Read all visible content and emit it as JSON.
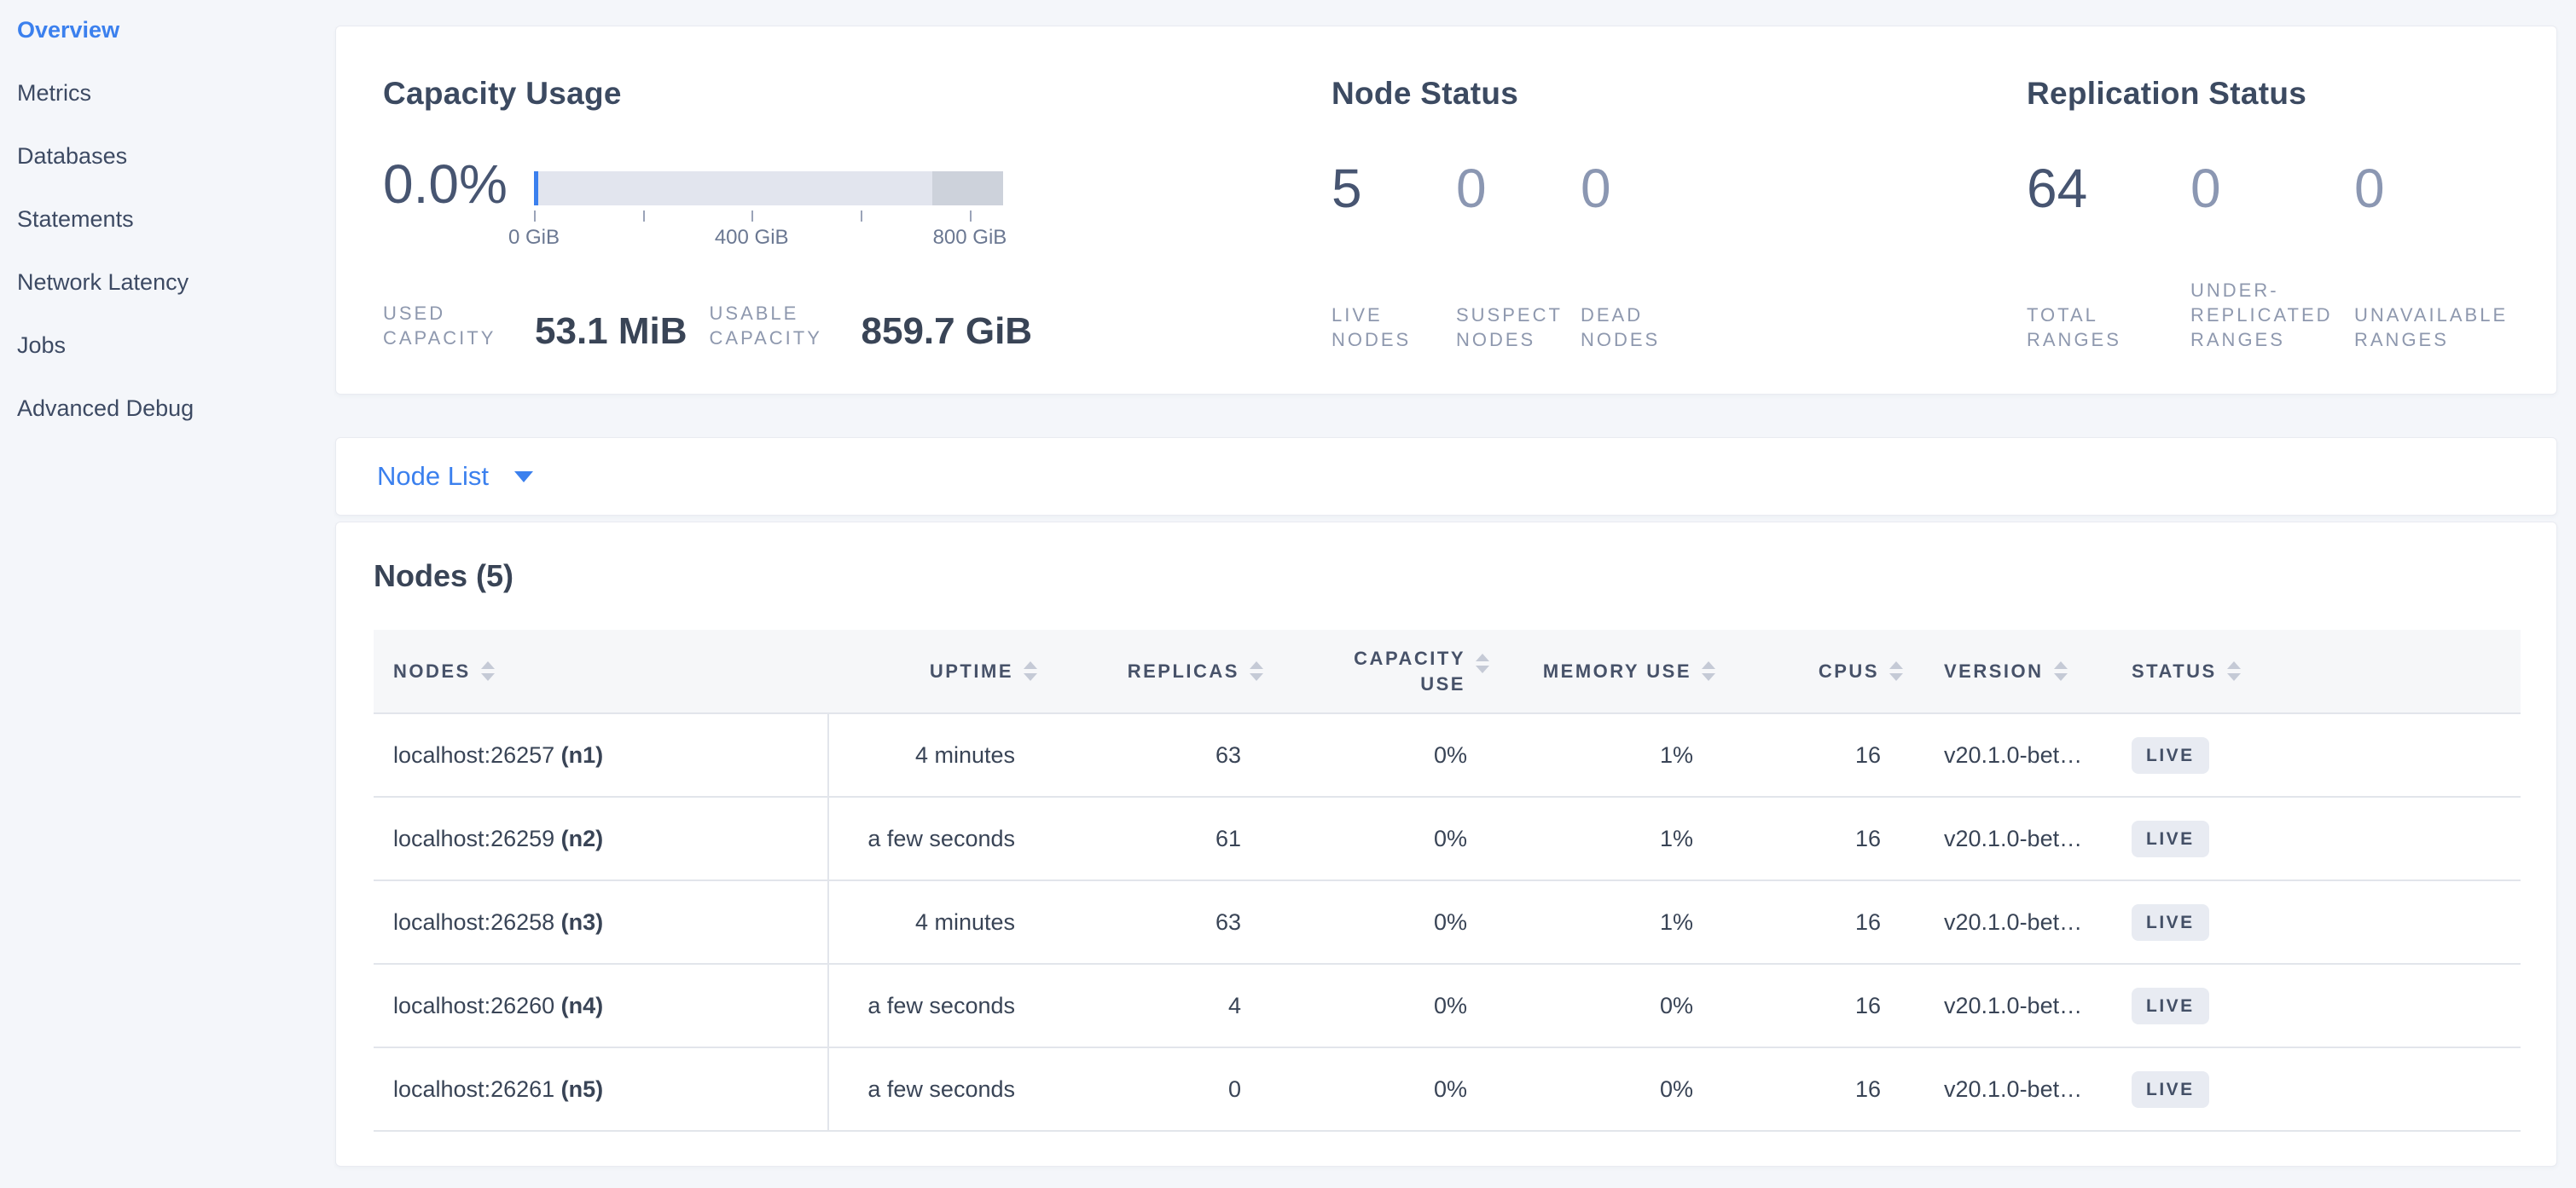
{
  "sidebar": {
    "items": [
      {
        "label": "Overview",
        "active": true
      },
      {
        "label": "Metrics"
      },
      {
        "label": "Databases"
      },
      {
        "label": "Statements"
      },
      {
        "label": "Network Latency"
      },
      {
        "label": "Jobs"
      },
      {
        "label": "Advanced Debug"
      }
    ]
  },
  "summary": {
    "capacity": {
      "title": "Capacity Usage",
      "percent": "0.0%",
      "bar": {
        "used_pct": 0.9,
        "other_pct": 15.1,
        "tick_positions_pct": [
          0,
          23.2,
          46.4,
          69.6,
          92.9
        ],
        "tick_labels": [
          "0 GiB",
          "400 GiB",
          "800 GiB"
        ],
        "tick_label_positions_pct": [
          0,
          46.4,
          92.9
        ]
      },
      "stats": [
        {
          "label": "USED CAPACITY",
          "value": "53.1 MiB"
        },
        {
          "label": "USABLE CAPACITY",
          "value": "859.7 GiB"
        }
      ]
    },
    "node_status": {
      "title": "Node Status",
      "metrics": [
        {
          "value": "5",
          "label": "LIVE NODES"
        },
        {
          "value": "0",
          "label": "SUSPECT NODES"
        },
        {
          "value": "0",
          "label": "DEAD NODES"
        }
      ]
    },
    "replication": {
      "title": "Replication Status",
      "metrics": [
        {
          "value": "64",
          "label": "TOTAL RANGES"
        },
        {
          "value": "0",
          "label": "UNDER-REPLICATED RANGES"
        },
        {
          "value": "0",
          "label": "UNAVAILABLE RANGES"
        }
      ]
    }
  },
  "node_list": {
    "dropdown_label": "Node List",
    "heading": "Nodes (5)",
    "table": {
      "columns": [
        "NODES",
        "UPTIME",
        "REPLICAS",
        "CAPACITY USE",
        "MEMORY USE",
        "CPUS",
        "VERSION",
        "STATUS"
      ],
      "rows": [
        {
          "address": "localhost:26257",
          "id": "(n1)",
          "uptime": "4 minutes",
          "replicas": "63",
          "capacity_use": "0%",
          "memory_use": "1%",
          "cpus": "16",
          "version": "v20.1.0-bet…",
          "status": "LIVE"
        },
        {
          "address": "localhost:26259",
          "id": "(n2)",
          "uptime": "a few seconds",
          "replicas": "61",
          "capacity_use": "0%",
          "memory_use": "1%",
          "cpus": "16",
          "version": "v20.1.0-bet…",
          "status": "LIVE"
        },
        {
          "address": "localhost:26258",
          "id": "(n3)",
          "uptime": "4 minutes",
          "replicas": "63",
          "capacity_use": "0%",
          "memory_use": "1%",
          "cpus": "16",
          "version": "v20.1.0-bet…",
          "status": "LIVE"
        },
        {
          "address": "localhost:26260",
          "id": "(n4)",
          "uptime": "a few seconds",
          "replicas": "4",
          "capacity_use": "0%",
          "memory_use": "0%",
          "cpus": "16",
          "version": "v20.1.0-bet…",
          "status": "LIVE"
        },
        {
          "address": "localhost:26261",
          "id": "(n5)",
          "uptime": "a few seconds",
          "replicas": "0",
          "capacity_use": "0%",
          "memory_use": "0%",
          "cpus": "16",
          "version": "v20.1.0-bet…",
          "status": "LIVE"
        }
      ]
    }
  },
  "colors": {
    "accent_blue": "#3b80ee",
    "page_bg": "#f4f6fa",
    "bar_track": "#e2e5ee",
    "bar_other": "#cdd2db",
    "badge_bg": "#e8ebf2"
  }
}
